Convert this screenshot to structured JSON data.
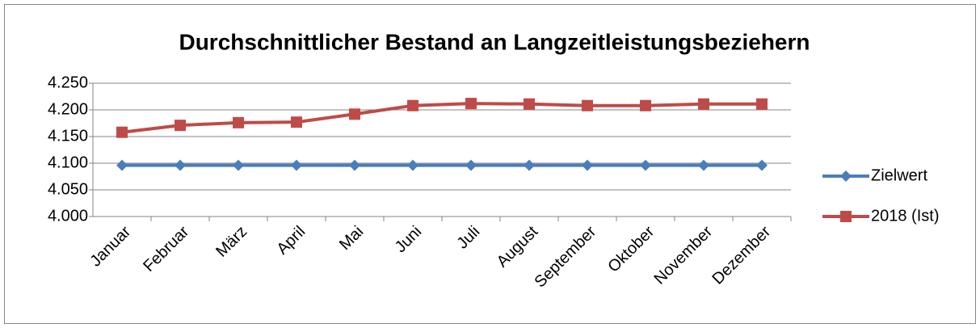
{
  "chart_data": {
    "type": "line",
    "title": "Durchschnittlicher Bestand an Langzeitleistungsbeziehern",
    "categories": [
      "Januar",
      "Februar",
      "März",
      "April",
      "Mai",
      "Juni",
      "Juli",
      "August",
      "September",
      "Oktober",
      "November",
      "Dezember"
    ],
    "series": [
      {
        "name": "Zielwert",
        "color": "#4a7ebb",
        "marker": "diamond",
        "values": [
          4096,
          4096,
          4096,
          4096,
          4096,
          4096,
          4096,
          4096,
          4096,
          4096,
          4096,
          4096
        ]
      },
      {
        "name": "2018 (Ist)",
        "color": "#be4b48",
        "marker": "square",
        "values": [
          4158,
          4171,
          4176,
          4177,
          4192,
          4208,
          4212,
          4211,
          4208,
          4208,
          4211,
          4211
        ]
      }
    ],
    "ylim": [
      4000,
      4250
    ],
    "yticks": [
      {
        "value": 4000,
        "label": "4.000"
      },
      {
        "value": 4050,
        "label": "4.050"
      },
      {
        "value": 4100,
        "label": "4.100"
      },
      {
        "value": 4150,
        "label": "4.150"
      },
      {
        "value": 4200,
        "label": "4.200"
      },
      {
        "value": 4250,
        "label": "4.250"
      }
    ],
    "grid": true,
    "legend": "right"
  }
}
